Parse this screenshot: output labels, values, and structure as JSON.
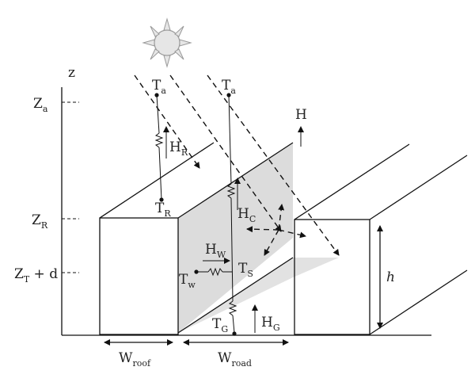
{
  "axis": {
    "z": "z"
  },
  "heights": {
    "za": "Z",
    "za_sub": "a",
    "zr": "Z",
    "zr_sub": "R",
    "zt": "Z",
    "zt_sub": "T",
    "zt_rest": " + d"
  },
  "temps": {
    "ta1": "T",
    "ta1_sub": "a",
    "ta2": "T",
    "ta2_sub": "a",
    "tr": "T",
    "tr_sub": "R",
    "tw": "T",
    "tw_sub": "w",
    "ts": "T",
    "ts_sub": "S",
    "tg": "T",
    "tg_sub": "G"
  },
  "fluxes": {
    "h": "H",
    "hr": "H",
    "hr_sub": "R",
    "hc": "H",
    "hc_sub": "C",
    "hw": "H",
    "hw_sub": "W",
    "hg": "H",
    "hg_sub": "G"
  },
  "dims": {
    "wroof": "W",
    "wroof_sub": "roof",
    "wroad": "W",
    "wroad_sub": "road",
    "height": "h"
  },
  "colors": {
    "shade": "#dcdcdc",
    "sun": "#e6e6e6",
    "sun_stroke": "#9a9a9a"
  }
}
